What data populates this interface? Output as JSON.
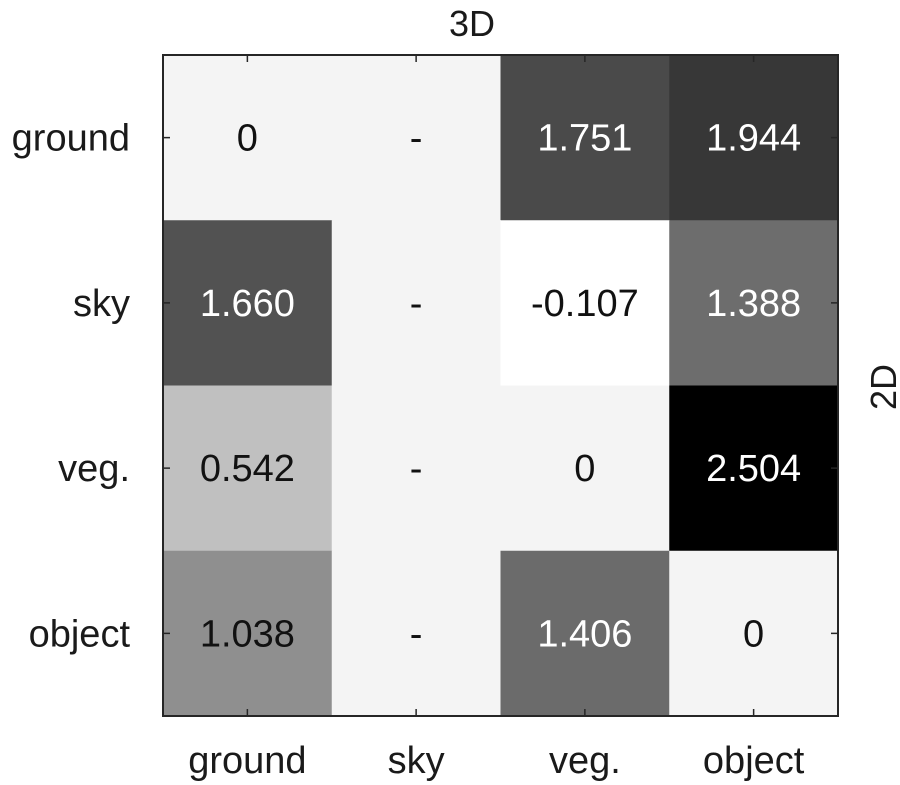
{
  "chart_data": {
    "type": "heatmap",
    "title": "3D",
    "xlabel": "",
    "ylabel": "2D",
    "x_categories": [
      "ground",
      "sky",
      "veg.",
      "object"
    ],
    "y_categories": [
      "ground",
      "sky",
      "veg.",
      "object"
    ],
    "values": [
      [
        0,
        null,
        1.751,
        1.944
      ],
      [
        1.66,
        null,
        -0.107,
        1.388
      ],
      [
        0.542,
        null,
        0,
        2.504
      ],
      [
        1.038,
        null,
        1.406,
        0
      ]
    ],
    "cell_labels": [
      [
        "0",
        "-",
        "1.751",
        "1.944"
      ],
      [
        "1.660",
        "-",
        "-0.107",
        "1.388"
      ],
      [
        "0.542",
        "-",
        "0",
        "2.504"
      ],
      [
        "1.038",
        "-",
        "1.406",
        "0"
      ]
    ],
    "colormap": "gray (high = dark)",
    "color_range": [
      -0.107,
      2.504
    ],
    "missing_color": "#f4f4f4",
    "grid": false
  }
}
